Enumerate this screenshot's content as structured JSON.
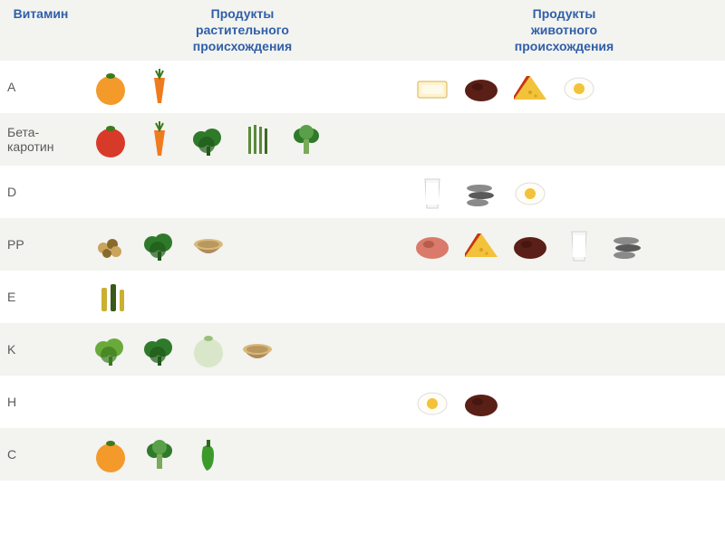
{
  "header": {
    "vitamin": "Витамин",
    "plant": "Продукты\nрастительного\nпроисхождения",
    "animal": "Продукты\nживотного\nпроисхождения"
  },
  "colors": {
    "header_text": "#2f5fa8",
    "body_text": "#5a5a5a",
    "row_alt": "#f3f3f0",
    "row_base": "#ffffff",
    "decor": "#f3e6a0"
  },
  "icons": {
    "orange": {
      "shape": "circle",
      "fill": "#f39a2b",
      "detail": "#3b7a1e"
    },
    "carrot": {
      "shape": "carrot",
      "fill": "#ef7b1f",
      "detail": "#3b7a1e"
    },
    "butter": {
      "shape": "box",
      "fill": "#fdf2d0",
      "detail": "#d9b24a"
    },
    "liver": {
      "shape": "round",
      "fill": "#5a1f16",
      "detail": "#3a120c"
    },
    "cheese": {
      "shape": "wedge",
      "fill": "#f2c23a",
      "detail": "#c9330b"
    },
    "egg": {
      "shape": "egg",
      "fill": "#fffdf5",
      "detail": "#f2c23a"
    },
    "tomato": {
      "shape": "circle",
      "fill": "#d83a2a",
      "detail": "#3b7a1e"
    },
    "parsley": {
      "shape": "bush",
      "fill": "#2f7a2a",
      "detail": "#1e5a18"
    },
    "asparagus": {
      "shape": "stalks",
      "fill": "#5a8a3a",
      "detail": "#3b6a22"
    },
    "broccoli": {
      "shape": "broccoli",
      "fill": "#2f7a2a",
      "detail": "#5aa04a"
    },
    "milk": {
      "shape": "glass",
      "fill": "#f7f7f7",
      "detail": "#d0d0d0"
    },
    "fish": {
      "shape": "fish",
      "fill": "#8a8a8a",
      "detail": "#5a5a5a"
    },
    "nuts": {
      "shape": "cluster",
      "fill": "#c9a45a",
      "detail": "#8a6a2a"
    },
    "oats": {
      "shape": "bowl",
      "fill": "#d9b87a",
      "detail": "#8a6a3a"
    },
    "ham": {
      "shape": "round",
      "fill": "#d97a6a",
      "detail": "#a04a3a"
    },
    "oil": {
      "shape": "bottles",
      "fill": "#c9b030",
      "detail": "#3a5a1a"
    },
    "lettuce": {
      "shape": "bush",
      "fill": "#6aaa3a",
      "detail": "#3b7a1e"
    },
    "cabbage": {
      "shape": "circle",
      "fill": "#d9e6c9",
      "detail": "#9abf7a"
    },
    "pepper": {
      "shape": "pepper",
      "fill": "#3b9a2a",
      "detail": "#2a6a1a"
    }
  },
  "rows": [
    {
      "vitamin": "A",
      "plant": [
        "orange",
        "carrot"
      ],
      "animal": [
        "butter",
        "liver",
        "cheese",
        "egg"
      ]
    },
    {
      "vitamin": "Бета-каротин",
      "plant": [
        "tomato",
        "carrot",
        "parsley",
        "asparagus",
        "broccoli"
      ],
      "animal": []
    },
    {
      "vitamin": "D",
      "plant": [],
      "animal": [
        "milk",
        "fish",
        "egg"
      ]
    },
    {
      "vitamin": "PP",
      "plant": [
        "nuts",
        "parsley",
        "oats"
      ],
      "animal": [
        "ham",
        "cheese",
        "liver",
        "milk",
        "fish"
      ]
    },
    {
      "vitamin": "E",
      "plant": [
        "oil"
      ],
      "animal": []
    },
    {
      "vitamin": "K",
      "plant": [
        "lettuce",
        "parsley",
        "cabbage",
        "oats"
      ],
      "animal": []
    },
    {
      "vitamin": "H",
      "plant": [],
      "animal": [
        "egg",
        "liver"
      ]
    },
    {
      "vitamin": "C",
      "plant": [
        "orange",
        "broccoli",
        "pepper"
      ],
      "animal": []
    }
  ]
}
